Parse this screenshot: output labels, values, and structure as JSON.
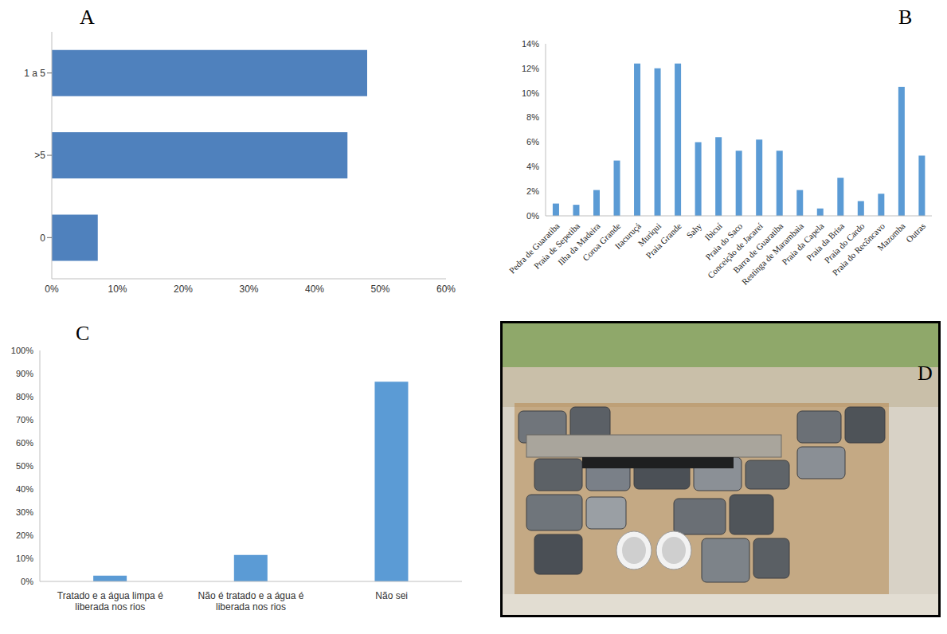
{
  "chart_data": [
    {
      "type": "bar",
      "panel": "A",
      "orientation": "horizontal",
      "grid": false,
      "color": "#4f81bd",
      "categories": [
        "1 a 5",
        ">5",
        "0"
      ],
      "values": [
        48,
        45,
        7
      ],
      "xlim": [
        0,
        60
      ],
      "xticks": [
        {
          "value": 0,
          "label": "0%"
        },
        {
          "value": 10,
          "label": "10%"
        },
        {
          "value": 20,
          "label": "20%"
        },
        {
          "value": 30,
          "label": "30%"
        },
        {
          "value": 40,
          "label": "40%"
        },
        {
          "value": 50,
          "label": "50%"
        },
        {
          "value": 60,
          "label": "60%"
        }
      ]
    },
    {
      "type": "bar",
      "panel": "B",
      "grid": false,
      "color": "#5b9bd5",
      "categories": [
        "Pedra de Guaratiba",
        "Praia de Sepetiba",
        "Ilha da Madeira",
        "Coroa Grande",
        "Itacuruçá",
        "Muriqui",
        "Praia Grande",
        "Sahy",
        "Ibicuí",
        "Praia do Saco",
        "Conceição de Jacareí",
        "Barra de Guaratiba",
        "Restinga de Marambaia",
        "Praia da Capela",
        "Praia da Brisa",
        "Praia do Cardo",
        "Praia do Recôncavo",
        "Mazomba",
        "Outras"
      ],
      "values": [
        1.0,
        0.9,
        2.1,
        4.5,
        12.4,
        12.0,
        12.4,
        6.0,
        6.4,
        5.3,
        6.2,
        5.3,
        2.1,
        0.6,
        3.1,
        1.2,
        1.8,
        10.5,
        4.9
      ],
      "ylim": [
        0,
        14
      ],
      "yticks": [
        {
          "value": 0,
          "label": "0%"
        },
        {
          "value": 2,
          "label": "2%"
        },
        {
          "value": 4,
          "label": "4%"
        },
        {
          "value": 6,
          "label": "6%"
        },
        {
          "value": 8,
          "label": "8%"
        },
        {
          "value": 10,
          "label": "10%"
        },
        {
          "value": 12,
          "label": "12%"
        },
        {
          "value": 14,
          "label": "14%"
        }
      ]
    },
    {
      "type": "bar",
      "panel": "C",
      "grid": false,
      "color": "#5b9bd5",
      "categories": [
        "Tratado e a água limpa é liberada nos rios",
        "Não é tratado e a água é liberada nos rios",
        "Não sei"
      ],
      "values": [
        2.5,
        11.5,
        86.5
      ],
      "ylim": [
        0,
        100
      ],
      "yticks": [
        {
          "value": 0,
          "label": "0%"
        },
        {
          "value": 10,
          "label": "10%"
        },
        {
          "value": 20,
          "label": "20%"
        },
        {
          "value": 30,
          "label": "30%"
        },
        {
          "value": 40,
          "label": "40%"
        },
        {
          "value": 50,
          "label": "50%"
        },
        {
          "value": 60,
          "label": "60%"
        },
        {
          "value": 70,
          "label": "70%"
        },
        {
          "value": 80,
          "label": "80%"
        },
        {
          "value": 90,
          "label": "90%"
        },
        {
          "value": 100,
          "label": "100%"
        }
      ]
    },
    {
      "type": "image",
      "panel": "D"
    }
  ]
}
